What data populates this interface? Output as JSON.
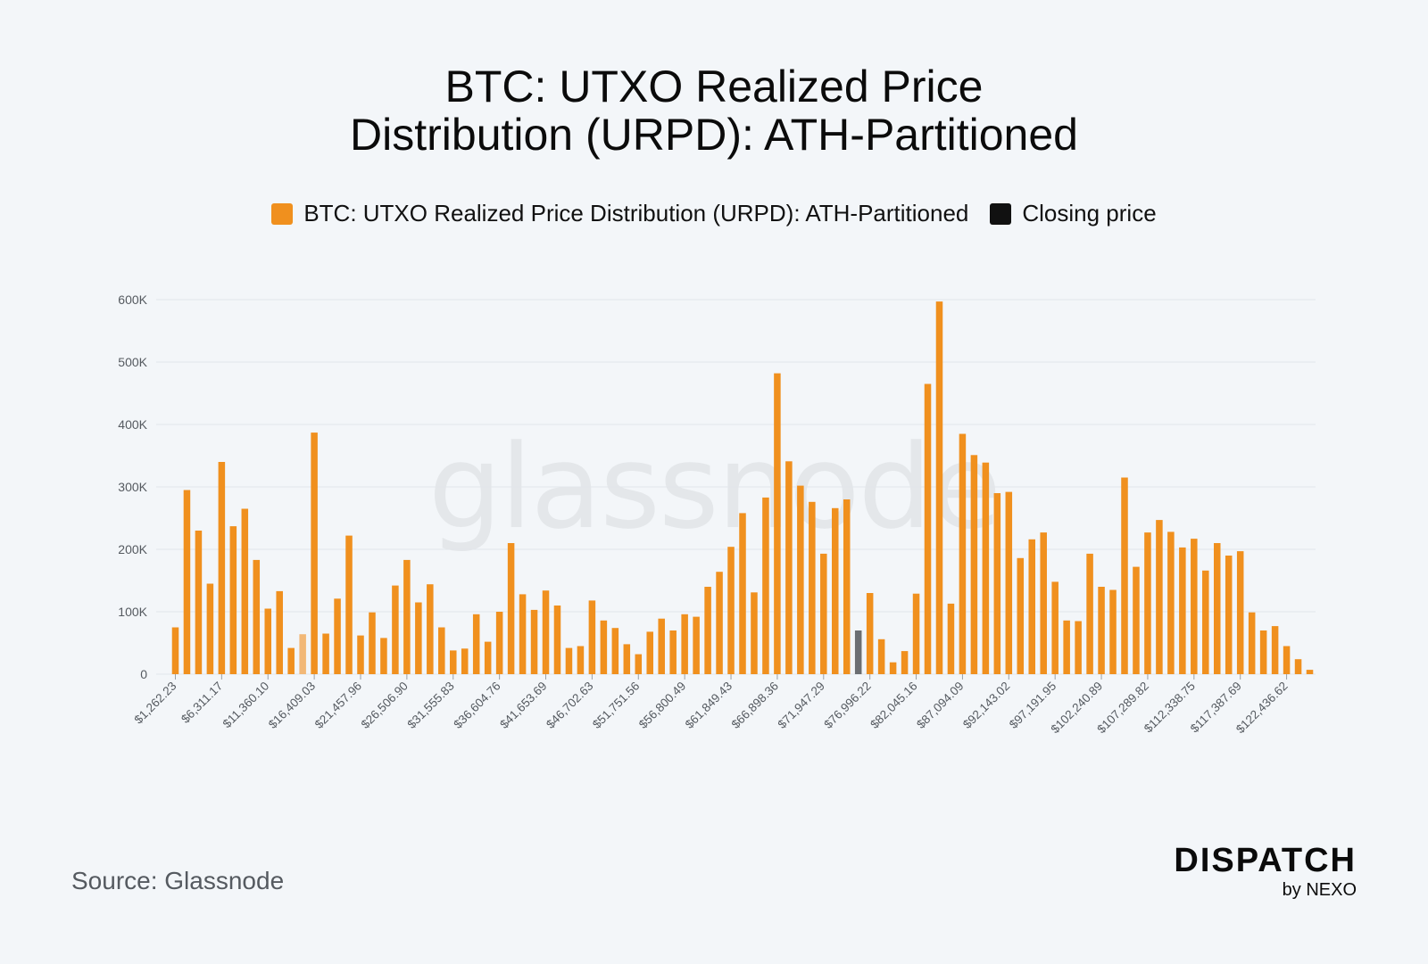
{
  "title_line1": "BTC: UTXO Realized Price",
  "title_line2": "Distribution (URPD): ATH-Partitioned",
  "legend": {
    "series": "BTC: UTXO Realized Price Distribution (URPD): ATH-Partitioned",
    "closing": "Closing price"
  },
  "colors": {
    "series": "#F0901E",
    "series_faded": "#F2B877",
    "closing": "#111111",
    "closing_bar": "#6B6E72",
    "grid": "#e2e6ea",
    "tick": "#555a60"
  },
  "watermark": "glassnode",
  "source": "Source: Glassnode",
  "brand": {
    "main": "DISPATCH",
    "sub": "by NEXO"
  },
  "chart_data": {
    "type": "bar",
    "ylim": [
      0,
      600000
    ],
    "y_ticks": [
      {
        "value": 0,
        "label": "0"
      },
      {
        "value": 100000,
        "label": "100K"
      },
      {
        "value": 200000,
        "label": "200K"
      },
      {
        "value": 300000,
        "label": "300K"
      },
      {
        "value": 400000,
        "label": "400K"
      },
      {
        "value": 500000,
        "label": "500K"
      },
      {
        "value": 600000,
        "label": "600K"
      }
    ],
    "x_tick_labels": [
      {
        "index": 0,
        "label": "$1,262.23"
      },
      {
        "index": 4,
        "label": "$6,311.17"
      },
      {
        "index": 8,
        "label": "$11,360.10"
      },
      {
        "index": 12,
        "label": "$16,409.03"
      },
      {
        "index": 16,
        "label": "$21,457.96"
      },
      {
        "index": 20,
        "label": "$26,506.90"
      },
      {
        "index": 24,
        "label": "$31,555.83"
      },
      {
        "index": 28,
        "label": "$36,604.76"
      },
      {
        "index": 32,
        "label": "$41,653.69"
      },
      {
        "index": 36,
        "label": "$46,702.63"
      },
      {
        "index": 40,
        "label": "$51,751.56"
      },
      {
        "index": 44,
        "label": "$56,800.49"
      },
      {
        "index": 48,
        "label": "$61,849.43"
      },
      {
        "index": 52,
        "label": "$66,898.36"
      },
      {
        "index": 56,
        "label": "$71,947.29"
      },
      {
        "index": 60,
        "label": "$76,996.22"
      },
      {
        "index": 64,
        "label": "$82,045.16"
      },
      {
        "index": 68,
        "label": "$87,094.09"
      },
      {
        "index": 72,
        "label": "$92,143.02"
      },
      {
        "index": 76,
        "label": "$97,191.95"
      },
      {
        "index": 80,
        "label": "$102,240.89"
      },
      {
        "index": 84,
        "label": "$107,289.82"
      },
      {
        "index": 88,
        "label": "$112,338.75"
      },
      {
        "index": 92,
        "label": "$117,387.69"
      },
      {
        "index": 96,
        "label": "$122,436.62"
      }
    ],
    "series": [
      {
        "name": "BTC: UTXO Realized Price Distribution (URPD): ATH-Partitioned",
        "values": [
          75000,
          295000,
          230000,
          145000,
          340000,
          237000,
          265000,
          183000,
          105000,
          133000,
          42000,
          64000,
          387000,
          65000,
          121000,
          222000,
          62000,
          99000,
          58000,
          142000,
          183000,
          115000,
          144000,
          75000,
          38000,
          41000,
          96000,
          52000,
          100000,
          210000,
          128000,
          103000,
          134000,
          110000,
          42000,
          45000,
          118000,
          86000,
          74000,
          48000,
          32000,
          68000,
          89000,
          70000,
          96000,
          92000,
          140000,
          164000,
          204000,
          258000,
          131000,
          283000,
          482000,
          341000,
          302000,
          276000,
          193000,
          266000,
          280000,
          70000,
          130000,
          56000,
          19000,
          37000,
          129000,
          465000,
          597000,
          113000,
          385000,
          351000,
          339000,
          290000,
          292000,
          186000,
          216000,
          227000,
          148000,
          86000,
          85000,
          193000,
          140000,
          135000,
          315000,
          172000,
          227000,
          247000,
          228000,
          203000,
          217000,
          166000,
          210000,
          190000,
          197000,
          99000,
          70000,
          77000,
          45000,
          24000,
          7000
        ]
      }
    ],
    "faded_index": 11,
    "closing_price_index": 59
  }
}
